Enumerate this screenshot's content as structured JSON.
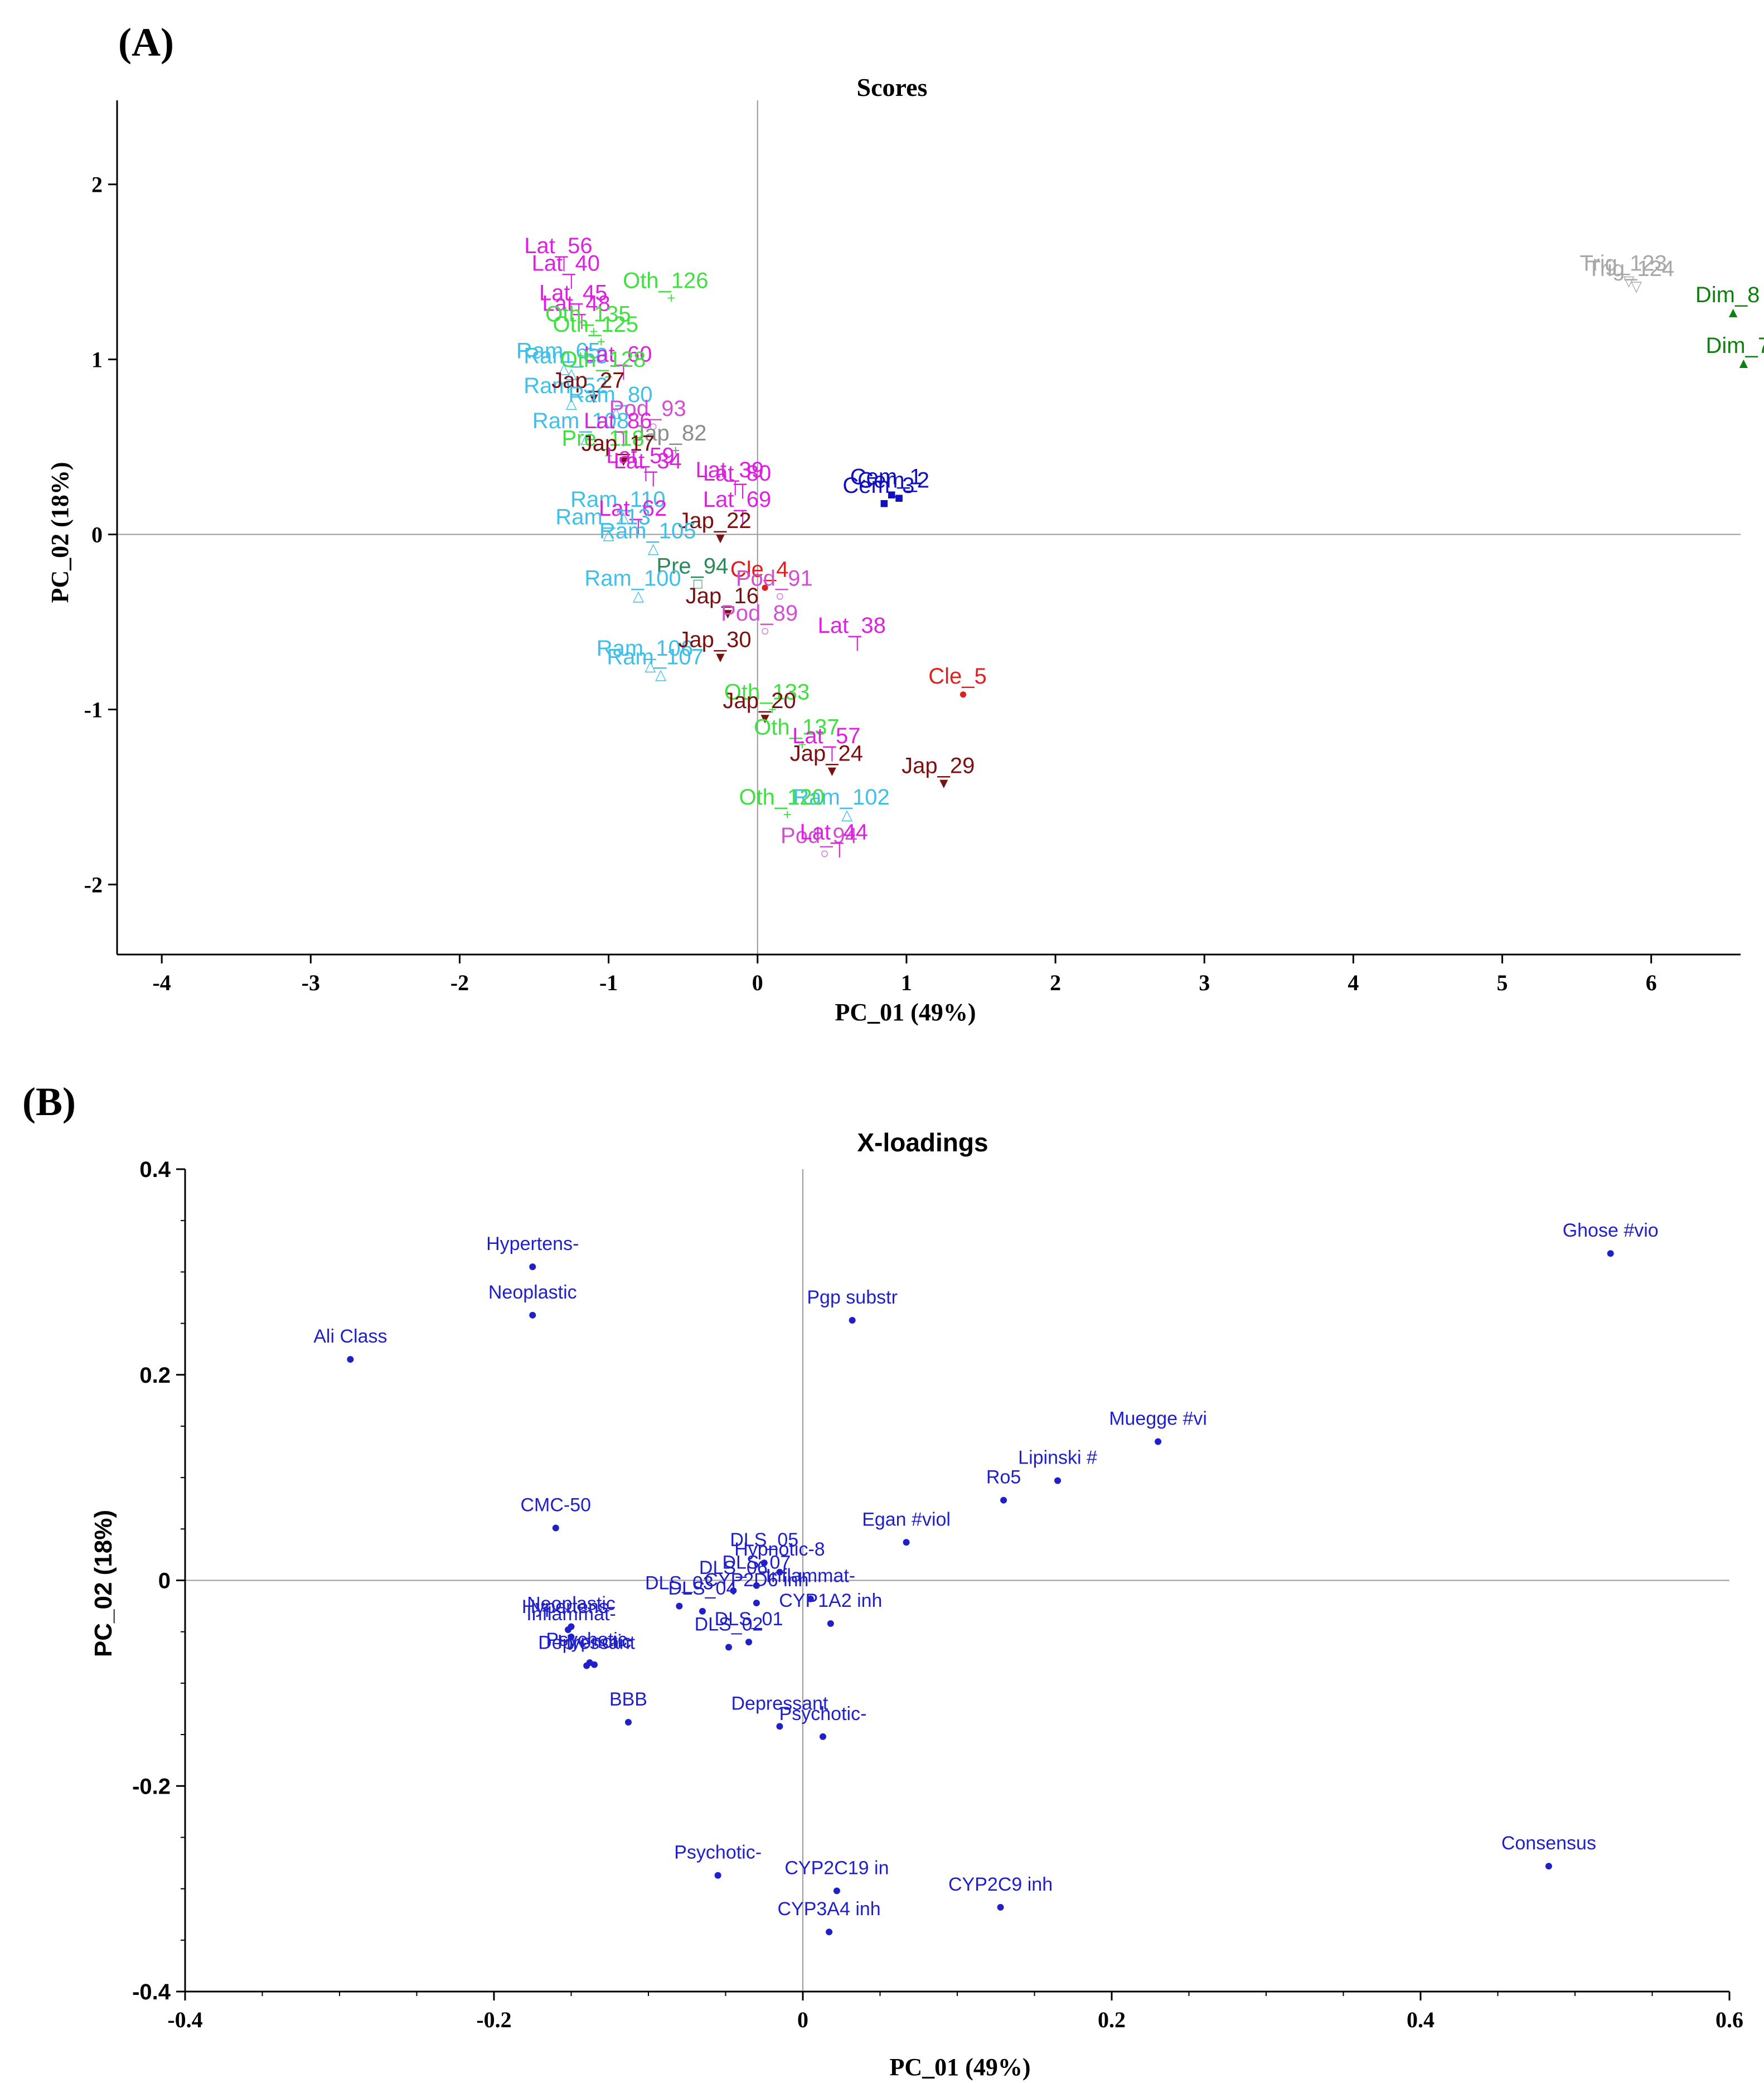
{
  "panel_labels": {
    "a": "(A)",
    "b": "(B)"
  },
  "chart_data": [
    {
      "id": "scores",
      "type": "scatter",
      "title": "Scores",
      "xlabel": "PC_01 (49%)",
      "ylabel": "PC_02 (18%)",
      "xlim": [
        -4.3,
        6.6
      ],
      "ylim": [
        -2.4,
        2.48
      ],
      "xticks": [
        -4,
        -3,
        -2,
        -1,
        0,
        1,
        2,
        3,
        4,
        5,
        6
      ],
      "yticks": [
        -2,
        -1,
        0,
        1,
        2
      ],
      "colors": {
        "Lat": "#e020e0",
        "Oth": "#40e040",
        "Ram": "#40c0e8",
        "Jap": "#7a1010",
        "Pod": "#d050d0",
        "Cle": "#e02020",
        "Cem": "#1010c0",
        "Dim": "#108010",
        "Trig": "#a8a8a8",
        "Pre": "#2a8a5a",
        "Gray": "#8c8c8c",
        "Black": "#202020"
      },
      "points": [
        {
          "label": "Lat_56",
          "group": "Lat",
          "x": -1.3,
          "y": 1.55,
          "mark": "|"
        },
        {
          "label": "Lat_40",
          "group": "Lat",
          "x": -1.25,
          "y": 1.45,
          "mark": "|"
        },
        {
          "label": "Oth_126",
          "group": "Oth",
          "x": -0.58,
          "y": 1.35,
          "mark": "+"
        },
        {
          "label": "Lat_45",
          "group": "Lat",
          "x": -1.2,
          "y": 1.28,
          "mark": "|"
        },
        {
          "label": "Lat_48",
          "group": "Lat",
          "x": -1.18,
          "y": 1.22,
          "mark": "|"
        },
        {
          "label": "Oth_135",
          "group": "Oth",
          "x": -1.1,
          "y": 1.16,
          "mark": "+"
        },
        {
          "label": "Oth_125",
          "group": "Oth",
          "x": -1.05,
          "y": 1.1,
          "mark": "+"
        },
        {
          "label": "Ram_65",
          "group": "Ram",
          "x": -1.3,
          "y": 0.95,
          "mark": "△"
        },
        {
          "label": "Ram_63",
          "group": "Ram",
          "x": -1.25,
          "y": 0.92,
          "mark": "△"
        },
        {
          "label": "Lat_60",
          "group": "Lat",
          "x": -0.9,
          "y": 0.93,
          "mark": "|"
        },
        {
          "label": "Oth_128",
          "group": "Oth",
          "x": -1.0,
          "y": 0.9,
          "mark": "+"
        },
        {
          "label": "Ram_52",
          "group": "Ram",
          "x": -1.25,
          "y": 0.75,
          "mark": "△"
        },
        {
          "label": "Jap_27",
          "group": "Jap",
          "x": -1.1,
          "y": 0.78,
          "mark": "▼"
        },
        {
          "label": "Ram_80",
          "group": "Ram",
          "x": -0.95,
          "y": 0.7,
          "mark": "△"
        },
        {
          "label": "Pod_93",
          "group": "Pod",
          "x": -0.7,
          "y": 0.62,
          "mark": "○"
        },
        {
          "label": "Ram_108",
          "group": "Ram",
          "x": -1.15,
          "y": 0.55,
          "mark": "△"
        },
        {
          "label": "Lat_86",
          "group": "Lat",
          "x": -0.9,
          "y": 0.55,
          "mark": "|"
        },
        {
          "label": "Jap_82",
          "group": "Gray",
          "x": -0.55,
          "y": 0.48,
          "mark": "+"
        },
        {
          "label": "Pre_118",
          "group": "Oth",
          "x": -1.0,
          "y": 0.45,
          "mark": "+"
        },
        {
          "label": "Jap_17",
          "group": "Jap",
          "x": -0.9,
          "y": 0.42,
          "mark": "▼"
        },
        {
          "label": "Lat_59",
          "group": "Lat",
          "x": -0.75,
          "y": 0.35,
          "mark": "|"
        },
        {
          "label": "Lat_34",
          "group": "Lat",
          "x": -0.7,
          "y": 0.32,
          "mark": "|"
        },
        {
          "label": "Lat_39",
          "group": "Lat",
          "x": -0.15,
          "y": 0.27,
          "mark": "|"
        },
        {
          "label": "Lat_80",
          "group": "Lat",
          "x": -0.1,
          "y": 0.25,
          "mark": "|"
        },
        {
          "label": "Cem_1",
          "group": "Cem",
          "x": 0.9,
          "y": 0.23,
          "mark": "■"
        },
        {
          "label": "Cem_2",
          "group": "Cem",
          "x": 0.95,
          "y": 0.21,
          "mark": "■"
        },
        {
          "label": "Cem_3",
          "group": "Cem",
          "x": 0.85,
          "y": 0.18,
          "mark": "■"
        },
        {
          "label": "Ram_110",
          "group": "Ram",
          "x": -0.9,
          "y": 0.1,
          "mark": "△"
        },
        {
          "label": "Lat_62",
          "group": "Lat",
          "x": -0.8,
          "y": 0.05,
          "mark": "|"
        },
        {
          "label": "Lat_69",
          "group": "Lat",
          "x": -0.1,
          "y": 0.1,
          "mark": "|"
        },
        {
          "label": "Ram_113",
          "group": "Ram",
          "x": -1.0,
          "y": 0.0,
          "mark": "△"
        },
        {
          "label": "Jap_22",
          "group": "Jap",
          "x": -0.25,
          "y": -0.02,
          "mark": "▼"
        },
        {
          "label": "Ram_105",
          "group": "Ram",
          "x": -0.7,
          "y": -0.08,
          "mark": "△"
        },
        {
          "label": "Cle_4",
          "group": "Cle",
          "x": 0.05,
          "y": -0.3,
          "mark": "●"
        },
        {
          "label": "Pre_94",
          "group": "Pre",
          "x": -0.4,
          "y": -0.28,
          "mark": "□"
        },
        {
          "label": "Pod_91",
          "group": "Pod",
          "x": 0.15,
          "y": -0.35,
          "mark": "○"
        },
        {
          "label": "Ram_100",
          "group": "Ram",
          "x": -0.8,
          "y": -0.35,
          "mark": "△"
        },
        {
          "label": "Jap_16",
          "group": "Jap",
          "x": -0.2,
          "y": -0.45,
          "mark": "▼"
        },
        {
          "label": "Pod_89",
          "group": "Pod",
          "x": 0.05,
          "y": -0.55,
          "mark": "○"
        },
        {
          "label": "Lat_38",
          "group": "Lat",
          "x": 0.67,
          "y": -0.62,
          "mark": "|"
        },
        {
          "label": "Ram_106",
          "group": "Ram",
          "x": -0.72,
          "y": -0.75,
          "mark": "△"
        },
        {
          "label": "Ram_107",
          "group": "Ram",
          "x": -0.65,
          "y": -0.8,
          "mark": "△"
        },
        {
          "label": "Jap_30",
          "group": "Jap",
          "x": -0.25,
          "y": -0.7,
          "mark": "▼"
        },
        {
          "label": "Cle_5",
          "group": "Cle",
          "x": 1.38,
          "y": -0.91,
          "mark": "●"
        },
        {
          "label": "Oth_133",
          "group": "Oth",
          "x": 0.1,
          "y": -1.0,
          "mark": "+"
        },
        {
          "label": "Jap_20",
          "group": "Jap",
          "x": 0.05,
          "y": -1.05,
          "mark": "▼"
        },
        {
          "label": "Oth_137",
          "group": "Oth",
          "x": 0.3,
          "y": -1.2,
          "mark": "+"
        },
        {
          "label": "Lat_57",
          "group": "Lat",
          "x": 0.5,
          "y": -1.25,
          "mark": "|"
        },
        {
          "label": "Jap_29",
          "group": "Jap",
          "x": 1.25,
          "y": -1.42,
          "mark": "▼"
        },
        {
          "label": "Jap_24",
          "group": "Jap",
          "x": 0.5,
          "y": -1.35,
          "mark": "▼"
        },
        {
          "label": "Ram_102",
          "group": "Ram",
          "x": 0.6,
          "y": -1.6,
          "mark": "△"
        },
        {
          "label": "Oth_120",
          "group": "Oth",
          "x": 0.2,
          "y": -1.6,
          "mark": "+"
        },
        {
          "label": "Pod_94",
          "group": "Pod",
          "x": 0.45,
          "y": -1.82,
          "mark": "○"
        },
        {
          "label": "Lat_44",
          "group": "Lat",
          "x": 0.55,
          "y": -1.8,
          "mark": "|"
        },
        {
          "label": "Trig_124",
          "group": "Trig",
          "x": 5.9,
          "y": 1.42,
          "mark": "▽"
        },
        {
          "label": "Trig_123",
          "group": "Trig",
          "x": 5.85,
          "y": 1.45,
          "mark": "▽"
        },
        {
          "label": "Dim_8",
          "group": "Dim",
          "x": 6.55,
          "y": 1.27,
          "mark": "▲"
        },
        {
          "label": "Dim_7",
          "group": "Dim",
          "x": 6.62,
          "y": 0.98,
          "mark": "▲"
        }
      ]
    },
    {
      "id": "xloadings",
      "type": "scatter",
      "title": "X-loadings",
      "xlabel": "PC_01 (49%)",
      "ylabel": "PC_02 (18%)",
      "xlim": [
        -0.4,
        0.6
      ],
      "ylim": [
        -0.4,
        0.4
      ],
      "xticks": [
        -0.4,
        -0.2,
        0,
        0.2,
        0.4,
        0.6
      ],
      "yticks": [
        -0.4,
        -0.2,
        0,
        0.2,
        0.4
      ],
      "color": "#2020c8",
      "points": [
        {
          "label": "Ghose #vio",
          "x": 0.523,
          "y": 0.318
        },
        {
          "label": "Hypertens-",
          "x": -0.175,
          "y": 0.305
        },
        {
          "label": "Neoplastic",
          "x": -0.175,
          "y": 0.258
        },
        {
          "label": "Pgp substr",
          "x": 0.032,
          "y": 0.253
        },
        {
          "label": "Ali Class",
          "x": -0.293,
          "y": 0.215
        },
        {
          "label": "Muegge #vi",
          "x": 0.23,
          "y": 0.135
        },
        {
          "label": "Lipinski #",
          "x": 0.165,
          "y": 0.097
        },
        {
          "label": "Ro5",
          "x": 0.13,
          "y": 0.078
        },
        {
          "label": "Egan #viol",
          "x": 0.067,
          "y": 0.037
        },
        {
          "label": "CMC-50",
          "x": -0.16,
          "y": 0.051
        },
        {
          "label": "DLS_05",
          "x": -0.025,
          "y": 0.017
        },
        {
          "label": "Hypnotic-8",
          "x": -0.015,
          "y": 0.008
        },
        {
          "label": "DLS_07",
          "x": -0.03,
          "y": -0.005
        },
        {
          "label": "DLS_06",
          "x": -0.045,
          "y": -0.01
        },
        {
          "label": "Inflammat-",
          "x": 0.005,
          "y": -0.018
        },
        {
          "label": "DLS_03",
          "x": -0.08,
          "y": -0.025
        },
        {
          "label": "DLS_04",
          "x": -0.065,
          "y": -0.03
        },
        {
          "label": "CYP2D6 inh",
          "x": -0.03,
          "y": -0.022
        },
        {
          "label": "CYP1A2 inh",
          "x": 0.018,
          "y": -0.042
        },
        {
          "label": "DLS_02",
          "x": -0.048,
          "y": -0.065
        },
        {
          "label": "DLS_01",
          "x": -0.035,
          "y": -0.06
        },
        {
          "label": "Neoplastic",
          "x": -0.15,
          "y": -0.045
        },
        {
          "label": "Hypertens-",
          "x": -0.152,
          "y": -0.048
        },
        {
          "label": "Inflammat-",
          "x": -0.15,
          "y": -0.055
        },
        {
          "label": "Psychotic-",
          "x": -0.138,
          "y": -0.08
        },
        {
          "label": "Hypnotic",
          "x": -0.135,
          "y": -0.082
        },
        {
          "label": "Depressant",
          "x": -0.14,
          "y": -0.083
        },
        {
          "label": "BBB",
          "x": -0.113,
          "y": -0.138
        },
        {
          "label": "Depressant",
          "x": -0.015,
          "y": -0.142
        },
        {
          "label": "Psychotic-",
          "x": 0.013,
          "y": -0.152
        },
        {
          "label": "Consensus",
          "x": 0.483,
          "y": -0.278
        },
        {
          "label": "Psychotic-",
          "x": -0.055,
          "y": -0.287
        },
        {
          "label": "CYP2C19 in",
          "x": 0.022,
          "y": -0.302
        },
        {
          "label": "CYP2C9 inh",
          "x": 0.128,
          "y": -0.318
        },
        {
          "label": "CYP3A4 inh",
          "x": 0.017,
          "y": -0.342
        }
      ]
    }
  ]
}
